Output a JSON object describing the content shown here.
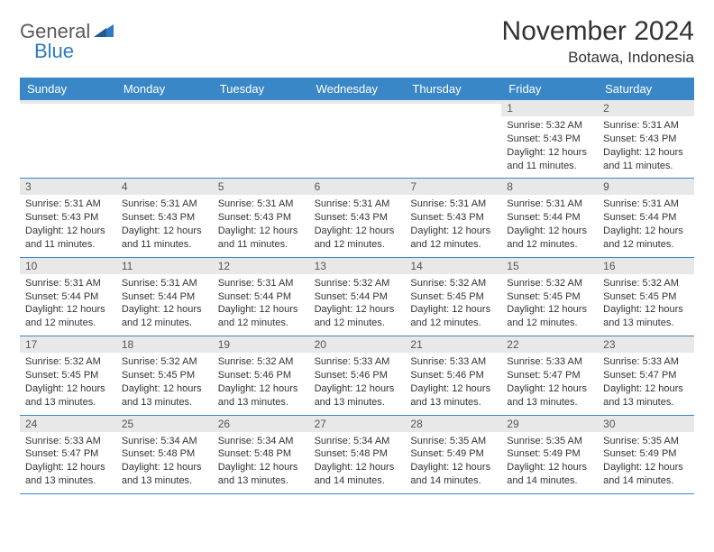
{
  "logo": {
    "general": "General",
    "blue": "Blue"
  },
  "title": "November 2024",
  "location": "Botawa, Indonesia",
  "colors": {
    "header_bg": "#3a87c8",
    "header_text": "#ffffff",
    "daynum_bg": "#e8e8e8",
    "border": "#3a87c8",
    "logo_blue": "#2f79c2",
    "text": "#333333"
  },
  "day_names": [
    "Sunday",
    "Monday",
    "Tuesday",
    "Wednesday",
    "Thursday",
    "Friday",
    "Saturday"
  ],
  "weeks": [
    [
      {
        "n": "",
        "sr": "",
        "ss": "",
        "dl": ""
      },
      {
        "n": "",
        "sr": "",
        "ss": "",
        "dl": ""
      },
      {
        "n": "",
        "sr": "",
        "ss": "",
        "dl": ""
      },
      {
        "n": "",
        "sr": "",
        "ss": "",
        "dl": ""
      },
      {
        "n": "",
        "sr": "",
        "ss": "",
        "dl": ""
      },
      {
        "n": "1",
        "sr": "Sunrise: 5:32 AM",
        "ss": "Sunset: 5:43 PM",
        "dl": "Daylight: 12 hours and 11 minutes."
      },
      {
        "n": "2",
        "sr": "Sunrise: 5:31 AM",
        "ss": "Sunset: 5:43 PM",
        "dl": "Daylight: 12 hours and 11 minutes."
      }
    ],
    [
      {
        "n": "3",
        "sr": "Sunrise: 5:31 AM",
        "ss": "Sunset: 5:43 PM",
        "dl": "Daylight: 12 hours and 11 minutes."
      },
      {
        "n": "4",
        "sr": "Sunrise: 5:31 AM",
        "ss": "Sunset: 5:43 PM",
        "dl": "Daylight: 12 hours and 11 minutes."
      },
      {
        "n": "5",
        "sr": "Sunrise: 5:31 AM",
        "ss": "Sunset: 5:43 PM",
        "dl": "Daylight: 12 hours and 11 minutes."
      },
      {
        "n": "6",
        "sr": "Sunrise: 5:31 AM",
        "ss": "Sunset: 5:43 PM",
        "dl": "Daylight: 12 hours and 12 minutes."
      },
      {
        "n": "7",
        "sr": "Sunrise: 5:31 AM",
        "ss": "Sunset: 5:43 PM",
        "dl": "Daylight: 12 hours and 12 minutes."
      },
      {
        "n": "8",
        "sr": "Sunrise: 5:31 AM",
        "ss": "Sunset: 5:44 PM",
        "dl": "Daylight: 12 hours and 12 minutes."
      },
      {
        "n": "9",
        "sr": "Sunrise: 5:31 AM",
        "ss": "Sunset: 5:44 PM",
        "dl": "Daylight: 12 hours and 12 minutes."
      }
    ],
    [
      {
        "n": "10",
        "sr": "Sunrise: 5:31 AM",
        "ss": "Sunset: 5:44 PM",
        "dl": "Daylight: 12 hours and 12 minutes."
      },
      {
        "n": "11",
        "sr": "Sunrise: 5:31 AM",
        "ss": "Sunset: 5:44 PM",
        "dl": "Daylight: 12 hours and 12 minutes."
      },
      {
        "n": "12",
        "sr": "Sunrise: 5:31 AM",
        "ss": "Sunset: 5:44 PM",
        "dl": "Daylight: 12 hours and 12 minutes."
      },
      {
        "n": "13",
        "sr": "Sunrise: 5:32 AM",
        "ss": "Sunset: 5:44 PM",
        "dl": "Daylight: 12 hours and 12 minutes."
      },
      {
        "n": "14",
        "sr": "Sunrise: 5:32 AM",
        "ss": "Sunset: 5:45 PM",
        "dl": "Daylight: 12 hours and 12 minutes."
      },
      {
        "n": "15",
        "sr": "Sunrise: 5:32 AM",
        "ss": "Sunset: 5:45 PM",
        "dl": "Daylight: 12 hours and 12 minutes."
      },
      {
        "n": "16",
        "sr": "Sunrise: 5:32 AM",
        "ss": "Sunset: 5:45 PM",
        "dl": "Daylight: 12 hours and 13 minutes."
      }
    ],
    [
      {
        "n": "17",
        "sr": "Sunrise: 5:32 AM",
        "ss": "Sunset: 5:45 PM",
        "dl": "Daylight: 12 hours and 13 minutes."
      },
      {
        "n": "18",
        "sr": "Sunrise: 5:32 AM",
        "ss": "Sunset: 5:45 PM",
        "dl": "Daylight: 12 hours and 13 minutes."
      },
      {
        "n": "19",
        "sr": "Sunrise: 5:32 AM",
        "ss": "Sunset: 5:46 PM",
        "dl": "Daylight: 12 hours and 13 minutes."
      },
      {
        "n": "20",
        "sr": "Sunrise: 5:33 AM",
        "ss": "Sunset: 5:46 PM",
        "dl": "Daylight: 12 hours and 13 minutes."
      },
      {
        "n": "21",
        "sr": "Sunrise: 5:33 AM",
        "ss": "Sunset: 5:46 PM",
        "dl": "Daylight: 12 hours and 13 minutes."
      },
      {
        "n": "22",
        "sr": "Sunrise: 5:33 AM",
        "ss": "Sunset: 5:47 PM",
        "dl": "Daylight: 12 hours and 13 minutes."
      },
      {
        "n": "23",
        "sr": "Sunrise: 5:33 AM",
        "ss": "Sunset: 5:47 PM",
        "dl": "Daylight: 12 hours and 13 minutes."
      }
    ],
    [
      {
        "n": "24",
        "sr": "Sunrise: 5:33 AM",
        "ss": "Sunset: 5:47 PM",
        "dl": "Daylight: 12 hours and 13 minutes."
      },
      {
        "n": "25",
        "sr": "Sunrise: 5:34 AM",
        "ss": "Sunset: 5:48 PM",
        "dl": "Daylight: 12 hours and 13 minutes."
      },
      {
        "n": "26",
        "sr": "Sunrise: 5:34 AM",
        "ss": "Sunset: 5:48 PM",
        "dl": "Daylight: 12 hours and 13 minutes."
      },
      {
        "n": "27",
        "sr": "Sunrise: 5:34 AM",
        "ss": "Sunset: 5:48 PM",
        "dl": "Daylight: 12 hours and 14 minutes."
      },
      {
        "n": "28",
        "sr": "Sunrise: 5:35 AM",
        "ss": "Sunset: 5:49 PM",
        "dl": "Daylight: 12 hours and 14 minutes."
      },
      {
        "n": "29",
        "sr": "Sunrise: 5:35 AM",
        "ss": "Sunset: 5:49 PM",
        "dl": "Daylight: 12 hours and 14 minutes."
      },
      {
        "n": "30",
        "sr": "Sunrise: 5:35 AM",
        "ss": "Sunset: 5:49 PM",
        "dl": "Daylight: 12 hours and 14 minutes."
      }
    ]
  ]
}
